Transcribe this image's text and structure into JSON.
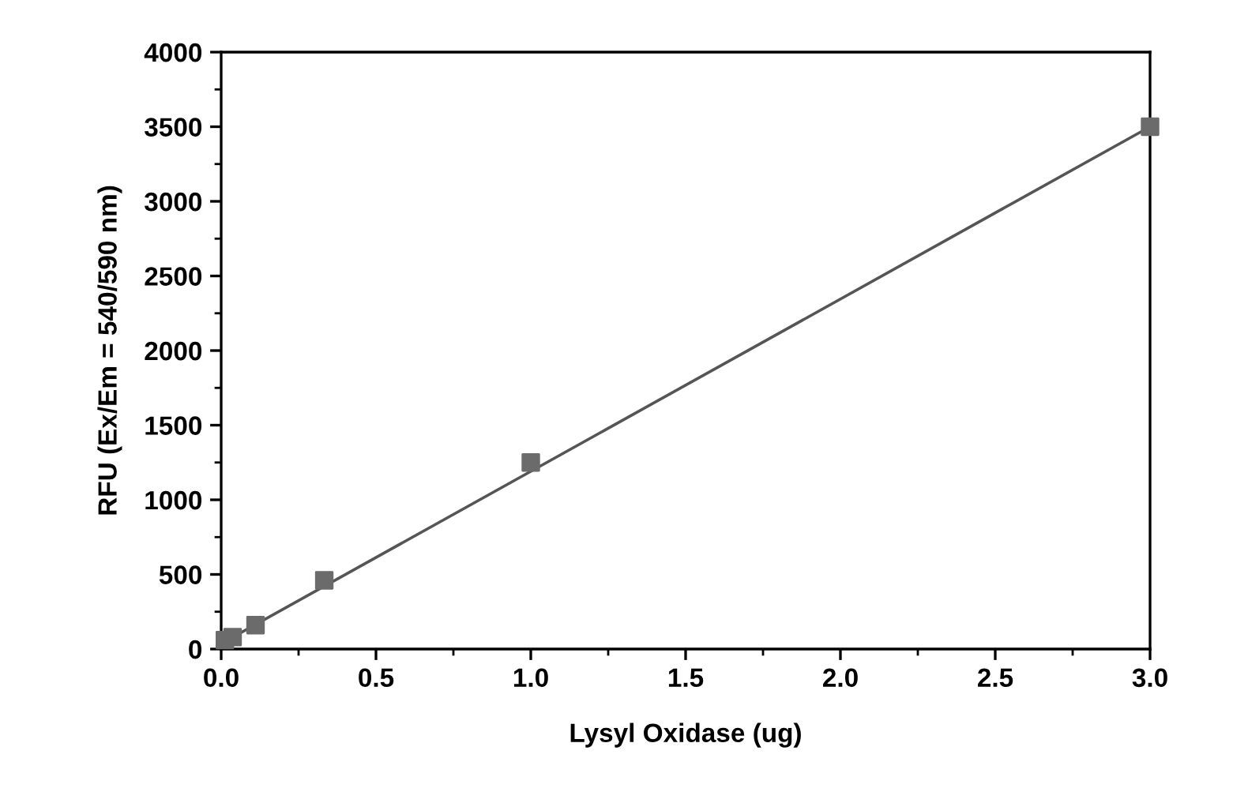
{
  "chart_data": {
    "type": "scatter",
    "xlabel": "Lysyl Oxidase (ug)",
    "ylabel": "RFU (Ex/Em = 540/590 nm)",
    "xlim": [
      0,
      3
    ],
    "ylim": [
      0,
      4000
    ],
    "xticks": [
      {
        "value": 0,
        "label": "0.0"
      },
      {
        "value": 0.5,
        "label": "0.5"
      },
      {
        "value": 1,
        "label": "1.0"
      },
      {
        "value": 1.5,
        "label": "1.5"
      },
      {
        "value": 2,
        "label": "2.0"
      },
      {
        "value": 2.5,
        "label": "2.5"
      },
      {
        "value": 3,
        "label": "3.0"
      }
    ],
    "yticks": [
      0,
      500,
      1000,
      1500,
      2000,
      2500,
      3000,
      3500,
      4000
    ],
    "grid": false,
    "legend": false,
    "series": [
      {
        "color": "#6b6b6b",
        "marker": "square",
        "x": [
          0.012,
          0.037,
          0.111,
          0.333,
          1,
          3
        ],
        "values": [
          60,
          80,
          160,
          460,
          1250,
          3500
        ]
      },
      {
        "type": "line",
        "color": "#555555",
        "marker": "none",
        "line_style": "solid",
        "x": [
          0.012,
          3
        ],
        "values": [
          50,
          3500
        ]
      }
    ]
  }
}
